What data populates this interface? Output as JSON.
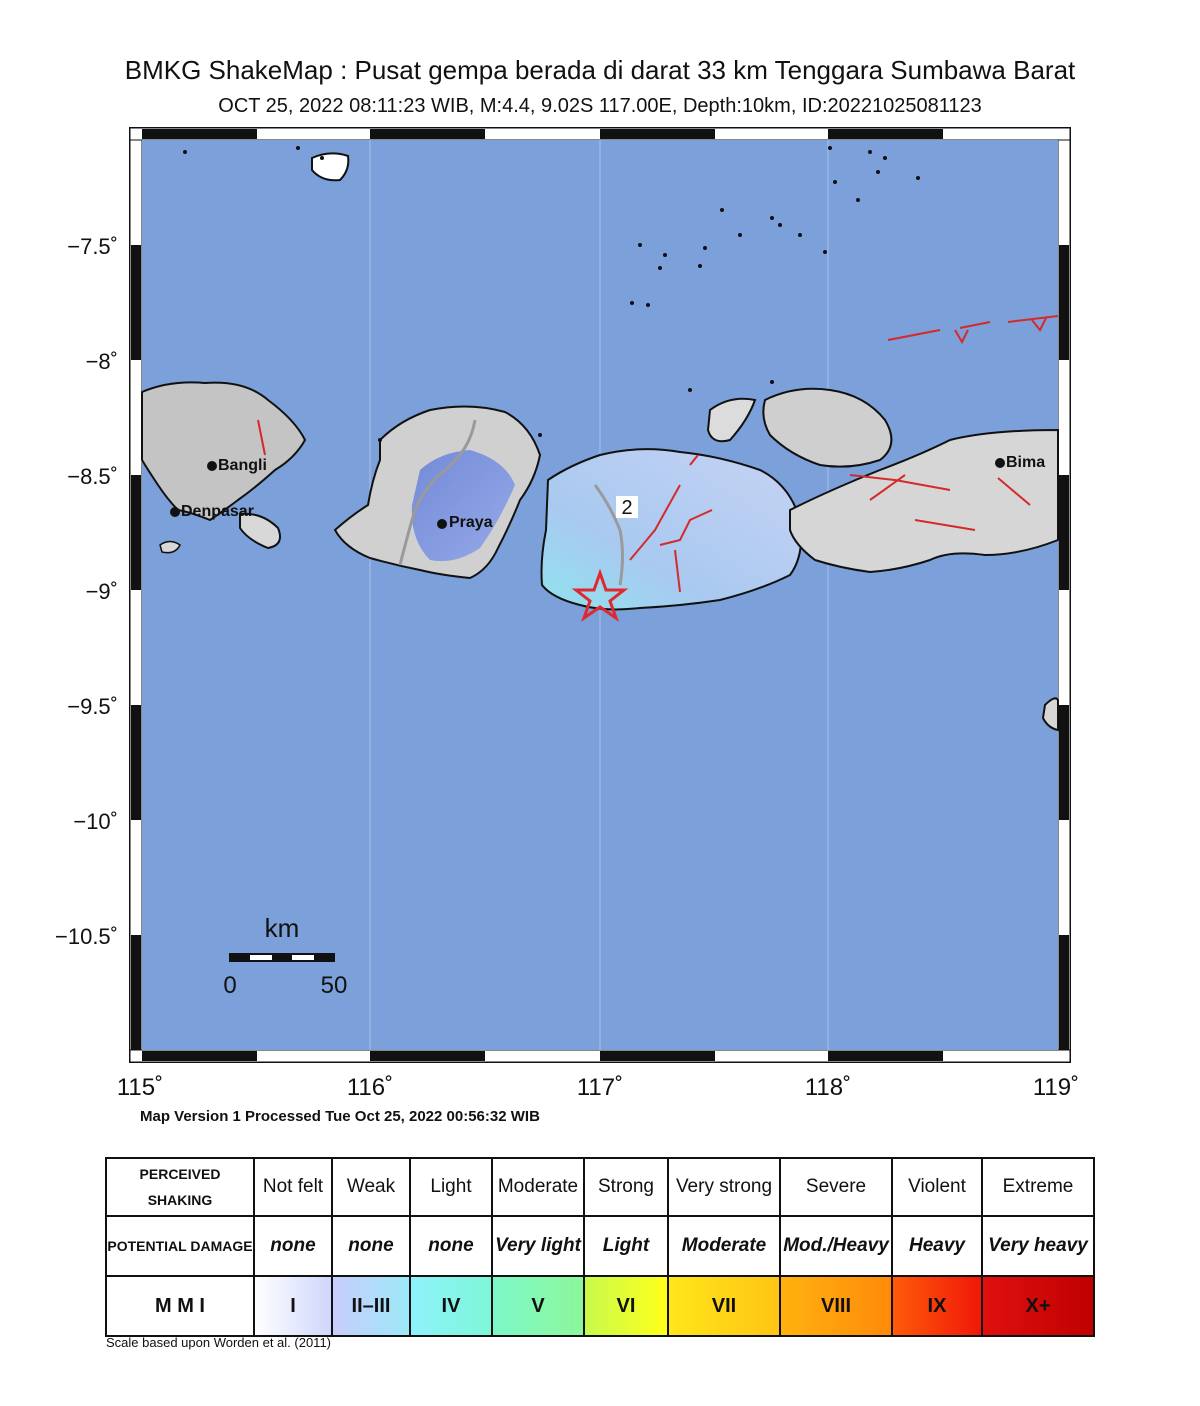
{
  "title": "BMKG ShakeMap : Pusat gempa berada di darat 33 km Tenggara Sumbawa Barat",
  "subtitle": "OCT 25, 2022 08:11:23 WIB, M:4.4, 9.02S 117.00E, Depth:10km, ID:20221025081123",
  "map": {
    "lat_ticks": [
      "−7.5˚",
      "−8˚",
      "−8.5˚",
      "−9˚",
      "−9.5˚",
      "−10˚",
      "−10.5˚"
    ],
    "lon_ticks": [
      "115˚",
      "116˚",
      "117˚",
      "118˚",
      "119˚"
    ],
    "cities": {
      "bangli": "Bangli",
      "denpasar": "Denpasar",
      "praya": "Praya",
      "bima": "Bima"
    },
    "contour_label": "2",
    "scale_unit": "km",
    "scale_min": "0",
    "scale_max": "50",
    "colors": {
      "sea": "#7ba0da",
      "land": "#c8c8c8",
      "fault": "#d42a2a",
      "epicenter": "#e0282e"
    }
  },
  "version_text": "Map Version 1 Processed Tue Oct 25, 2022 00:56:32 WIB",
  "legend": {
    "perceived_label": "PERCEIVED SHAKING",
    "damage_label": "POTENTIAL DAMAGE",
    "mmi_label": "M M I",
    "shaking": [
      "Not felt",
      "Weak",
      "Light",
      "Moderate",
      "Strong",
      "Very strong",
      "Severe",
      "Violent",
      "Extreme"
    ],
    "damage": [
      "none",
      "none",
      "none",
      "Very light",
      "Light",
      "Moderate",
      "Mod./Heavy",
      "Heavy",
      "Very heavy"
    ],
    "mmi": [
      "I",
      "II–III",
      "IV",
      "V",
      "VI",
      "VII",
      "VIII",
      "IX",
      "X+"
    ]
  },
  "credit": "Scale based upon Worden et al. (2011)"
}
